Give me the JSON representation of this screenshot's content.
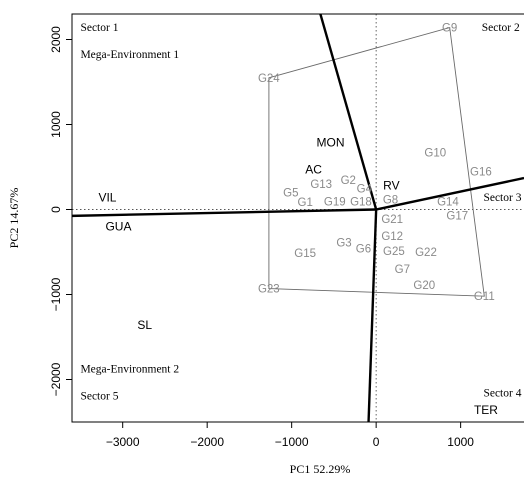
{
  "chart_data": {
    "type": "scatter",
    "title": "",
    "xlabel": "PC1 52.29%",
    "ylabel": "PC2 14.67%",
    "xlim": [
      -3600,
      1750
    ],
    "ylim": [
      -2500,
      2300
    ],
    "xticks": [
      -3000,
      -2000,
      -1000,
      0,
      1000
    ],
    "yticks": [
      -2000,
      -1000,
      0,
      1000,
      2000
    ],
    "xtick_labels": [
      "−3000",
      "−2000",
      "−1000",
      "0",
      "1000"
    ],
    "ytick_labels": [
      "−2000",
      "−1000",
      "0",
      "1000",
      "2000"
    ],
    "genotypes": [
      {
        "label": "G1",
        "x": -840,
        "y": 90
      },
      {
        "label": "G2",
        "x": -330,
        "y": 350
      },
      {
        "label": "G3",
        "x": -380,
        "y": -390
      },
      {
        "label": "G4",
        "x": -140,
        "y": 250
      },
      {
        "label": "G5",
        "x": -1010,
        "y": 200
      },
      {
        "label": "G6",
        "x": -150,
        "y": -460
      },
      {
        "label": "G7",
        "x": 310,
        "y": -700
      },
      {
        "label": "G8",
        "x": 170,
        "y": 120
      },
      {
        "label": "G9",
        "x": 870,
        "y": 2140
      },
      {
        "label": "G10",
        "x": 700,
        "y": 670
      },
      {
        "label": "G11",
        "x": 1280,
        "y": -1020
      },
      {
        "label": "G12",
        "x": 190,
        "y": -310
      },
      {
        "label": "G13",
        "x": -650,
        "y": 300
      },
      {
        "label": "G14",
        "x": 850,
        "y": 95
      },
      {
        "label": "G15",
        "x": -840,
        "y": -510
      },
      {
        "label": "G16",
        "x": 1240,
        "y": 450
      },
      {
        "label": "G17",
        "x": 960,
        "y": -70
      },
      {
        "label": "G18",
        "x": -180,
        "y": 95
      },
      {
        "label": "G19",
        "x": -490,
        "y": 95
      },
      {
        "label": "G20",
        "x": 570,
        "y": -890
      },
      {
        "label": "G21",
        "x": 190,
        "y": -110
      },
      {
        "label": "G22",
        "x": 590,
        "y": -500
      },
      {
        "label": "G23",
        "x": -1270,
        "y": -930
      },
      {
        "label": "G24",
        "x": -1270,
        "y": 1550
      },
      {
        "label": "G25",
        "x": 210,
        "y": -490
      }
    ],
    "environments": [
      {
        "label": "MON",
        "x": -540,
        "y": 790
      },
      {
        "label": "AC",
        "x": -740,
        "y": 470
      },
      {
        "label": "RV",
        "x": 180,
        "y": 280
      },
      {
        "label": "VIL",
        "x": -3180,
        "y": 140
      },
      {
        "label": "GUA",
        "x": -3050,
        "y": -200
      },
      {
        "label": "SL",
        "x": -2740,
        "y": -1360
      },
      {
        "label": "TER",
        "x": 1300,
        "y": -2360
      }
    ],
    "polygon": [
      [
        -1270,
        1550
      ],
      [
        870,
        2140
      ],
      [
        1280,
        -1020
      ],
      [
        -1270,
        -930
      ]
    ],
    "sector_rays": [
      [
        -660,
        2300
      ],
      [
        -3600,
        -75
      ],
      [
        -90,
        -2500
      ],
      [
        1750,
        370
      ]
    ],
    "sector_labels": [
      {
        "text": "Sector 1",
        "x": -3500,
        "y": 2150
      },
      {
        "text": "Mega-Environment 1",
        "x": -3500,
        "y": 1830
      },
      {
        "text": "Sector 2",
        "x": 1250,
        "y": 2150
      },
      {
        "text": "Sector 3",
        "x": 1270,
        "y": 150
      },
      {
        "text": "Mega-Environment 2",
        "x": -3500,
        "y": -1870
      },
      {
        "text": "Sector 5",
        "x": -3500,
        "y": -2190
      },
      {
        "text": "Sector 4",
        "x": 1270,
        "y": -2150
      }
    ],
    "reference_lines": {
      "x": 0,
      "y": 0,
      "style": "dotted"
    }
  },
  "colors": {
    "genotype": "#8a8a8a",
    "environment": "#000000",
    "polygon": "#6a6a6a",
    "ray": "#000000",
    "axis": "#000000"
  }
}
